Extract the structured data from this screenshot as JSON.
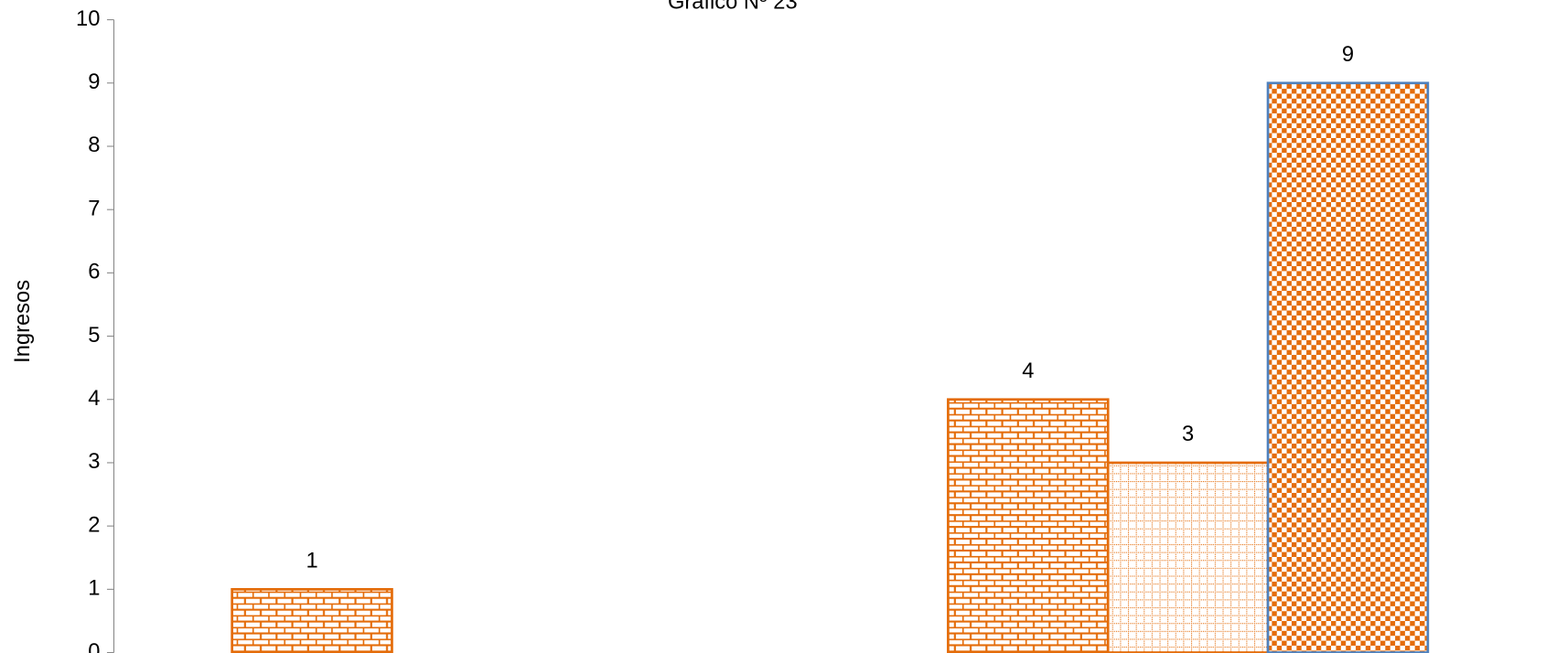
{
  "chart_data": {
    "type": "bar",
    "title": "Gráfico Nº 23",
    "ylabel": "Ingresos",
    "categories": [
      null,
      null
    ],
    "series": [
      {
        "color": "#e46c0a",
        "edgecolor": "#e46c0a",
        "pattern": "brick",
        "values": [
          1,
          4
        ]
      },
      {
        "color": "#e46c0a",
        "edgecolor": "#e46c0a",
        "pattern": "dots",
        "values": [
          null,
          3
        ]
      },
      {
        "color": "#e46c0a",
        "edgecolor": "#4f81bd",
        "pattern": "checker",
        "values": [
          null,
          9
        ]
      }
    ],
    "ylim": [
      0,
      10
    ],
    "yticks": [
      0,
      1,
      2,
      3,
      4,
      5,
      6,
      7,
      8,
      9,
      10
    ],
    "grid": false
  }
}
